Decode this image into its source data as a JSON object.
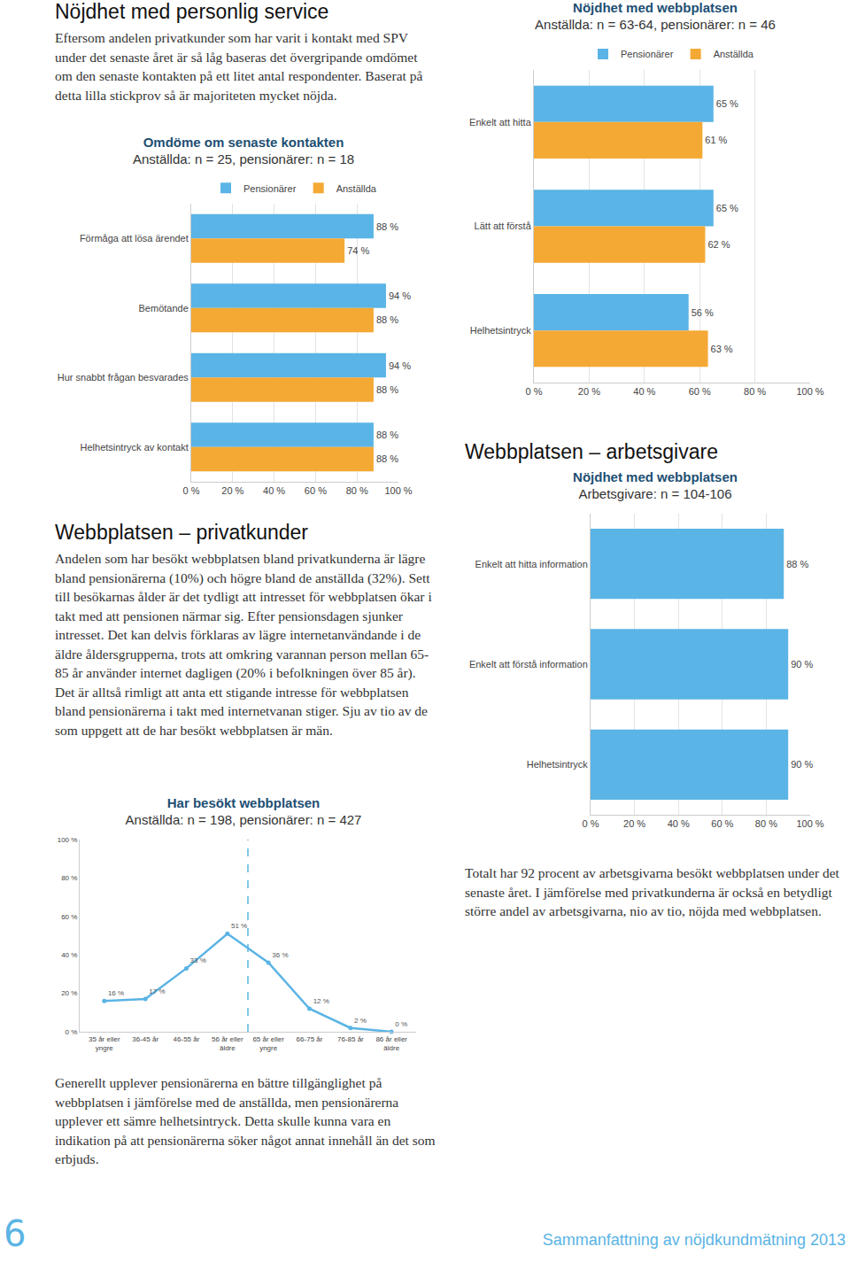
{
  "page": {
    "heading_service": "Nöjdhet med personlig service",
    "text_service": "Eftersom andelen privatkunder som har varit i kontakt med SPV under det senaste året är så låg baseras det övergripande omdömet om den senaste kontakten på ett litet antal respondenter. Baserat på detta lilla stickprov så är majoriteten mycket nöjda.",
    "heading_privat": "Webbplatsen – privatkunder",
    "text_privat": "Andelen som har besökt webbplatsen bland privatkunderna är lägre bland pensionärerna (10%) och högre bland de anställda (32%). Sett till besökarnas ålder är det tydligt att intresset för webbplatsen ökar i takt med att pensionen närmar sig. Efter pensionsdagen sjunker intresset. Det kan delvis förklaras av lägre internetanvändande i de äldre åldersgrupperna, trots att omkring varannan person mellan 65-85 år använder internet dagligen (20% i befolkningen över 85 år). Det är alltså rimligt att anta ett stigande intresse för webbplatsen bland pensionärerna i takt med internetvanan stiger. Sju av tio av de som uppgett att de har besökt webbplatsen är män.",
    "heading_arbetsgivare": "Webbplatsen – arbetsgivare",
    "text_arbetsgivare": "Totalt har 92 procent av arbetsgivarna besökt webbplatsen under det senaste året. I jämförelse med privatkunderna är också en betydligt större andel av arbetsgivarna, nio av tio, nöjda med webbplatsen.",
    "text_generellt": "Generellt upplever pensionärerna en bättre tillgänglighet på webbplatsen i jämförelse med de anställda, men pensionärerna upplever ett sämre helhetsintryck. Detta skulle kunna vara en indikation på att pensionärerna söker något annat innehåll än det som erbjuds.",
    "page_number": "6",
    "footer": "Sammanfattning av nöjdkundmätning 2013"
  },
  "chart_data": [
    {
      "type": "bar",
      "orientation": "horizontal",
      "title": "Omdöme om senaste kontakten",
      "subtitle": "Anställda: n = 25, pensionärer: n = 18",
      "categories": [
        "Förmåga att lösa ärendet",
        "Bemötande",
        "Hur snabbt frågan besvarades",
        "Helhetsintryck av kontakt"
      ],
      "series": [
        {
          "name": "Pensionärer",
          "color": "#5ab4e5",
          "values": [
            88,
            94,
            94,
            88
          ],
          "value_labels": [
            "88 %",
            "94 %",
            "94 %",
            "88 %"
          ]
        },
        {
          "name": "Anställda",
          "color": "#f4a935",
          "values": [
            74,
            88,
            88,
            88
          ],
          "value_labels": [
            "74 %",
            "88 %",
            "88 %",
            "88 %"
          ]
        }
      ],
      "xlim": [
        0,
        100
      ],
      "xticks": [
        {
          "value": 0,
          "label": "0 %"
        },
        {
          "value": 20,
          "label": "20 %"
        },
        {
          "value": 40,
          "label": "40 %"
        },
        {
          "value": 60,
          "label": "60 %"
        },
        {
          "value": 80,
          "label": "80 %"
        },
        {
          "value": 100,
          "label": "100 %"
        }
      ],
      "grid": true,
      "data_labels": true,
      "legend": "top"
    },
    {
      "type": "bar",
      "orientation": "horizontal",
      "title": "Nöjdhet med webbplatsen",
      "subtitle": "Anställda: n = 63-64, pensionärer: n = 46",
      "categories": [
        "Enkelt att hitta",
        "Lätt att förstå",
        "Helhetsintryck"
      ],
      "series": [
        {
          "name": "Pensionärer",
          "color": "#5ab4e5",
          "values": [
            65,
            65,
            56
          ],
          "value_labels": [
            "65 %",
            "65 %",
            "56 %"
          ]
        },
        {
          "name": "Anställda",
          "color": "#f4a935",
          "values": [
            61,
            62,
            63
          ],
          "value_labels": [
            "61 %",
            "62 %",
            "63 %"
          ]
        }
      ],
      "xlim": [
        0,
        100
      ],
      "xticks": [
        {
          "value": 0,
          "label": "0 %"
        },
        {
          "value": 20,
          "label": "20 %"
        },
        {
          "value": 40,
          "label": "40 %"
        },
        {
          "value": 60,
          "label": "60 %"
        },
        {
          "value": 80,
          "label": "80 %"
        },
        {
          "value": 100,
          "label": "100 %"
        }
      ],
      "grid": true,
      "data_labels": true,
      "legend": "top"
    },
    {
      "type": "bar",
      "orientation": "horizontal",
      "title": "Nöjdhet med webbplatsen",
      "subtitle": "Arbetsgivare: n = 104-106",
      "categories": [
        "Enkelt att hitta information",
        "Enkelt att förstå information",
        "Helhetsintryck"
      ],
      "values": [
        88,
        90,
        90
      ],
      "value_labels": [
        "88 %",
        "90 %",
        "90 %"
      ],
      "color": "#5ab4e5",
      "xlim": [
        0,
        100
      ],
      "xticks": [
        {
          "value": 0,
          "label": "0 %"
        },
        {
          "value": 20,
          "label": "20 %"
        },
        {
          "value": 40,
          "label": "40 %"
        },
        {
          "value": 60,
          "label": "60 %"
        },
        {
          "value": 80,
          "label": "80 %"
        },
        {
          "value": 100,
          "label": "100 %"
        }
      ],
      "grid": true,
      "data_labels": true
    },
    {
      "type": "line",
      "title": "Har besökt webbplatsen",
      "subtitle": "Anställda: n = 198, pensionärer: n = 427",
      "categories": [
        "35 år eller yngre",
        "36-45 år",
        "46-55 år",
        "56 år eller äldre",
        "65 år eller yngre",
        "66-75 år",
        "76-85 år",
        "86 år eller äldre"
      ],
      "values": [
        16,
        17,
        33,
        51,
        36,
        12,
        2,
        0
      ],
      "value_labels": [
        "16 %",
        "17 %",
        "33 %",
        "51 %",
        "36 %",
        "12 %",
        "2 %",
        "0 %"
      ],
      "color": "#5ab4e5",
      "marker": "circle",
      "ylim": [
        0,
        100
      ],
      "yticks": [
        {
          "value": 0,
          "label": "0 %"
        },
        {
          "value": 20,
          "label": "20 %"
        },
        {
          "value": 40,
          "label": "40 %"
        },
        {
          "value": 60,
          "label": "60 %"
        },
        {
          "value": 80,
          "label": "80 %"
        },
        {
          "value": 100,
          "label": "100 %"
        }
      ],
      "grid": false,
      "data_labels": true
    }
  ]
}
